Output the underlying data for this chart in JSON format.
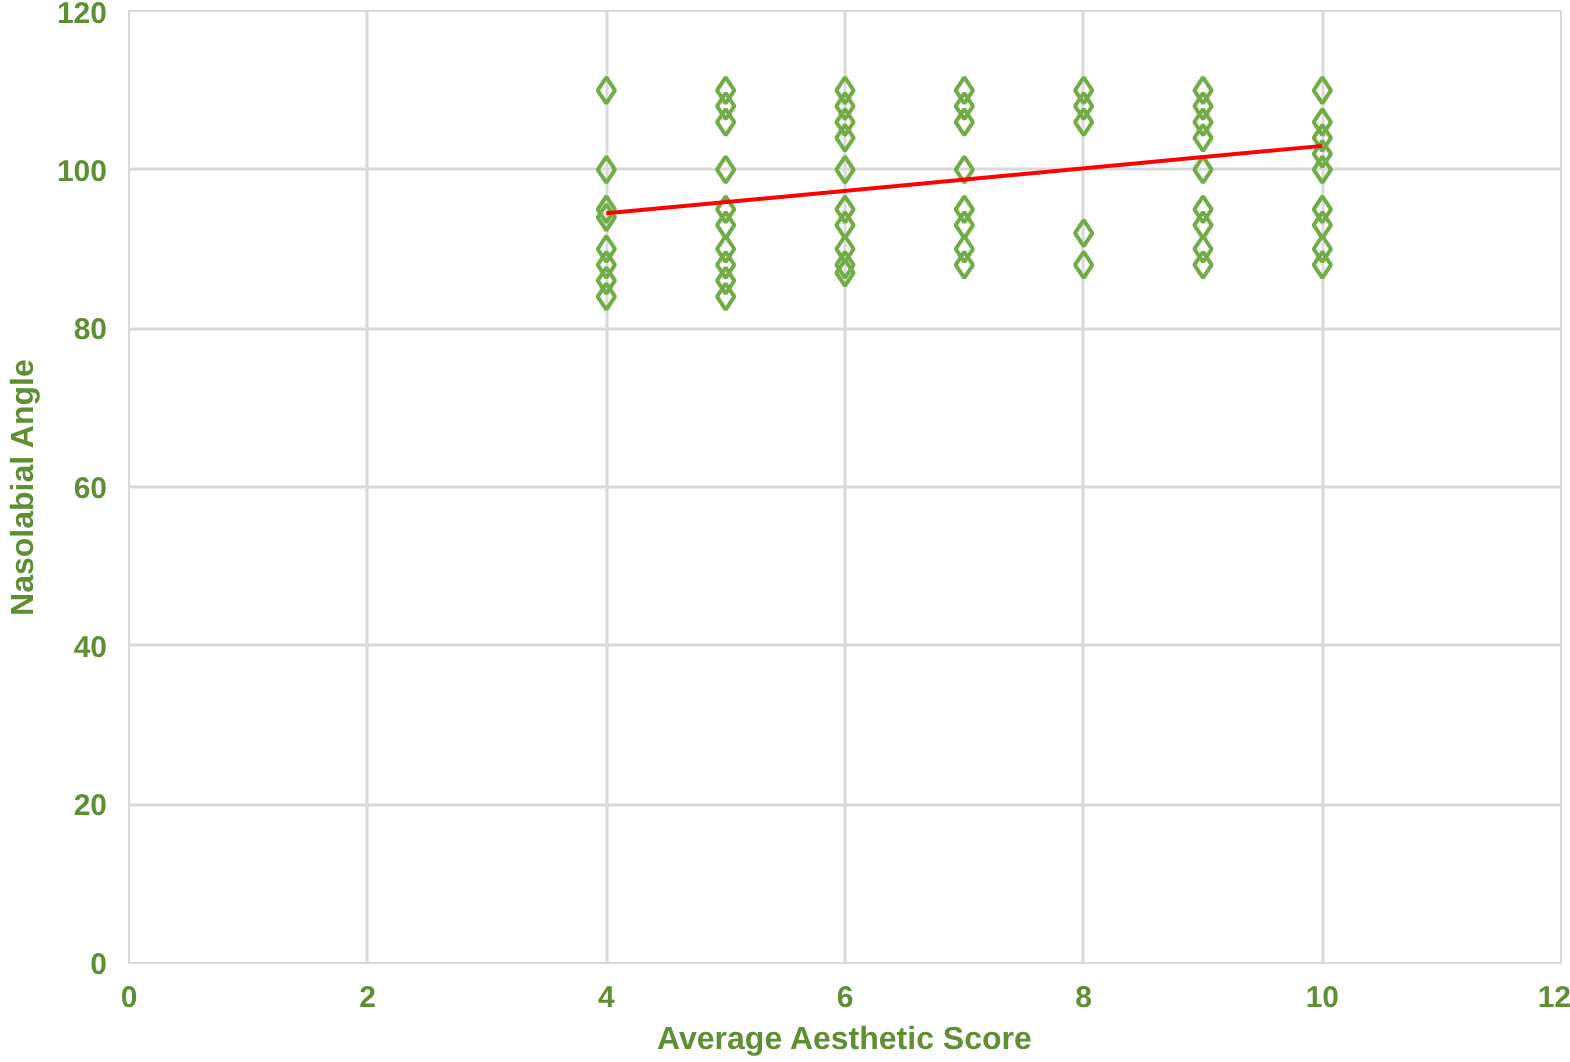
{
  "chart_data": {
    "type": "scatter",
    "xlabel": "Average Aesthetic Score",
    "ylabel": "Nasolabial Angle",
    "xlim": [
      0,
      12
    ],
    "xticks": [
      0,
      2,
      4,
      6,
      8,
      10,
      12
    ],
    "ylim": [
      0,
      120
    ],
    "yticks": [
      0,
      20,
      40,
      60,
      80,
      100,
      120
    ],
    "grid": true,
    "series": [
      {
        "marker": "diamond",
        "color": "#70ad47",
        "x": [
          4,
          4,
          4,
          4,
          4,
          4,
          4,
          4,
          5,
          5,
          5,
          5,
          5,
          5,
          5,
          5,
          5,
          5,
          6,
          6,
          6,
          6,
          6,
          6,
          6,
          6,
          6,
          6,
          7,
          7,
          7,
          7,
          7,
          7,
          7,
          7,
          8,
          8,
          8,
          8,
          8,
          9,
          9,
          9,
          9,
          9,
          9,
          9,
          9,
          9,
          10,
          10,
          10,
          10,
          10,
          10,
          10,
          10,
          10
        ],
        "values": [
          110,
          100,
          95,
          94,
          90,
          88,
          86,
          84,
          110,
          108,
          106,
          100,
          95,
          93,
          90,
          88,
          86,
          84,
          110,
          108,
          106,
          104,
          100,
          95,
          93,
          90,
          88,
          87,
          110,
          108,
          106,
          100,
          95,
          93,
          90,
          88,
          110,
          108,
          106,
          92,
          88,
          110,
          108,
          106,
          104,
          100,
          95,
          93,
          90,
          88,
          110,
          106,
          104,
          102,
          100,
          95,
          93,
          90,
          88
        ]
      },
      {
        "type": "line",
        "color": "#ff0000",
        "x": [
          4,
          10
        ],
        "values": [
          94.5,
          103
        ]
      }
    ]
  }
}
